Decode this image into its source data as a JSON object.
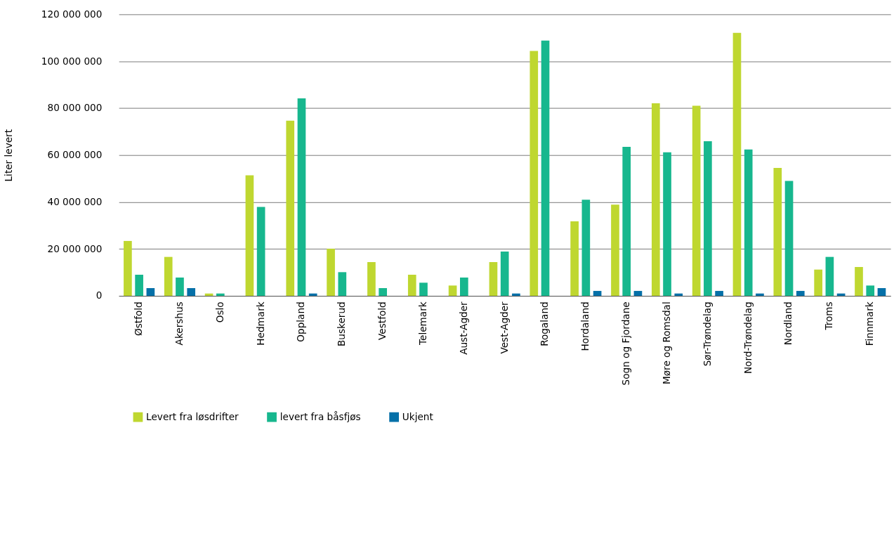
{
  "chart_data": {
    "type": "bar",
    "ylabel": "Liter levert",
    "categories": [
      "Østfold",
      "Akershus",
      "Oslo",
      "Hedmark",
      "Oppland",
      "Buskerud",
      "Vestfold",
      "Telemark",
      "Aust-Agder",
      "Vest-Agder",
      "Rogaland",
      "Hordaland",
      "Sogn og Fjordane",
      "Møre og Romsdal",
      "Sør-Trøndelag",
      "Nord-Trøndelag",
      "Nordland",
      "Troms",
      "Finnmark"
    ],
    "series": [
      {
        "name": "Levert fra løsdrifter",
        "color": "#bfd730",
        "values": [
          23400000,
          16600000,
          1000000,
          51400000,
          74700000,
          20100000,
          14400000,
          9000000,
          4400000,
          14400000,
          104400000,
          31800000,
          38900000,
          82100000,
          81000000,
          112100000,
          54500000,
          11200000,
          12300000
        ]
      },
      {
        "name": "levert fra båsfjøs",
        "color": "#17b78e",
        "values": [
          9000000,
          7800000,
          1000000,
          37900000,
          84200000,
          10100000,
          3300000,
          5600000,
          7800000,
          18900000,
          108800000,
          41000000,
          63500000,
          61200000,
          65900000,
          62400000,
          49000000,
          16600000,
          4400000
        ]
      },
      {
        "name": "Ukjent",
        "color": "#0570a8",
        "values": [
          3300000,
          3300000,
          0,
          0,
          1000000,
          0,
          0,
          0,
          0,
          1000000,
          0,
          2100000,
          2100000,
          1000000,
          2100000,
          1000000,
          2100000,
          1000000,
          3300000
        ]
      }
    ],
    "ylim": [
      0,
      120000000
    ],
    "yticks": [
      {
        "value": 0,
        "label": "0"
      },
      {
        "value": 20000000,
        "label": "20 000 000"
      },
      {
        "value": 40000000,
        "label": "40 000 000"
      },
      {
        "value": 60000000,
        "label": "60 000 000"
      },
      {
        "value": 80000000,
        "label": "80 000 000"
      },
      {
        "value": 100000000,
        "label": "100 000 000"
      },
      {
        "value": 120000000,
        "label": "120 000 000"
      }
    ],
    "grid": "y",
    "legend": "bottom"
  }
}
